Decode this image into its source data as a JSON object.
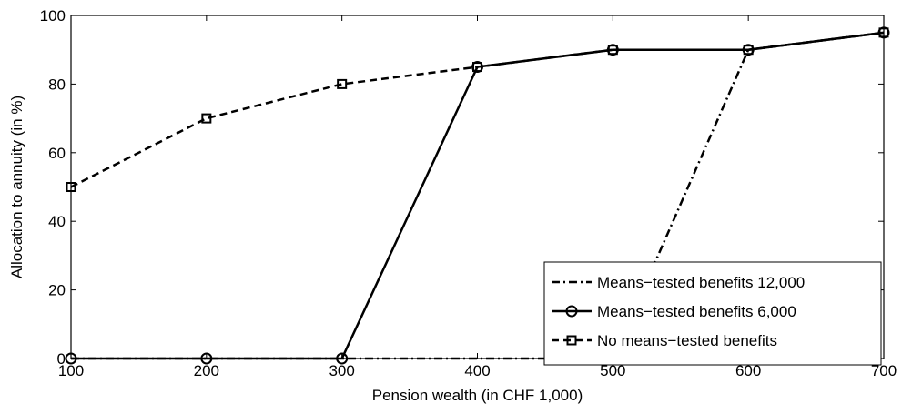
{
  "chart_data": {
    "type": "line",
    "xlabel": "Pension wealth (in CHF 1,000)",
    "ylabel": "Allocation to annuity (in %)",
    "xlim": [
      100,
      700
    ],
    "ylim": [
      0,
      100
    ],
    "xticks": [
      100,
      200,
      300,
      400,
      500,
      600,
      700
    ],
    "yticks": [
      0,
      20,
      40,
      60,
      80,
      100
    ],
    "grid": false,
    "legend_position": "bottom-right",
    "series": [
      {
        "name": "Means−tested benefits 12,000",
        "style": "dash-dot",
        "marker": "none",
        "color": "#000000",
        "x": [
          100,
          200,
          300,
          400,
          500,
          600,
          700
        ],
        "y": [
          0,
          0,
          0,
          0,
          0,
          90,
          95
        ]
      },
      {
        "name": "Means−tested benefits 6,000",
        "style": "solid",
        "marker": "circle",
        "color": "#000000",
        "x": [
          100,
          200,
          300,
          400,
          500,
          600,
          700
        ],
        "y": [
          0,
          0,
          0,
          85,
          90,
          90,
          95
        ]
      },
      {
        "name": "No means−tested benefits",
        "style": "dashed",
        "marker": "square",
        "color": "#000000",
        "x": [
          100,
          200,
          300,
          400,
          500,
          600,
          700
        ],
        "y": [
          50,
          70,
          80,
          85,
          90,
          90,
          95
        ]
      }
    ]
  }
}
